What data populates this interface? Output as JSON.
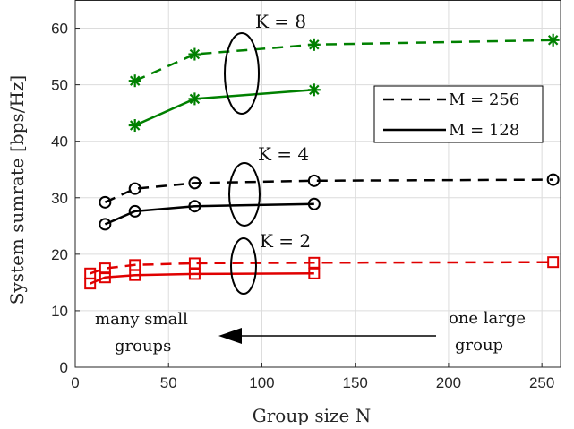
{
  "chart_data": {
    "type": "line",
    "xlabel": "Group size N",
    "ylabel": "System sumrate [bps/Hz]",
    "xlim": [
      0,
      260
    ],
    "ylim": [
      0,
      65
    ],
    "xticks": [
      0,
      50,
      100,
      150,
      200,
      250
    ],
    "yticks": [
      0,
      10,
      20,
      30,
      40,
      50,
      60
    ],
    "grid": true,
    "legend": {
      "placement": "right",
      "entries": [
        {
          "label": "M = 256",
          "style": "dashed"
        },
        {
          "label": "M = 128",
          "style": "solid"
        }
      ]
    },
    "series": [
      {
        "name": "K = 8, M = 256",
        "color": "#008000",
        "dash": "dashed",
        "marker": "asterisk",
        "x": [
          32,
          64,
          128,
          256
        ],
        "y": [
          50.7,
          55.4,
          57.1,
          57.9
        ]
      },
      {
        "name": "K = 8, M = 128",
        "color": "#008000",
        "dash": "solid",
        "marker": "asterisk",
        "x": [
          32,
          64,
          128
        ],
        "y": [
          42.8,
          47.5,
          49.1
        ]
      },
      {
        "name": "K = 4, M = 256",
        "color": "#000000",
        "dash": "dashed",
        "marker": "circle",
        "x": [
          16,
          32,
          64,
          128,
          256
        ],
        "y": [
          29.2,
          31.6,
          32.6,
          33.0,
          33.2
        ]
      },
      {
        "name": "K = 4, M = 128",
        "color": "#000000",
        "dash": "solid",
        "marker": "circle",
        "x": [
          16,
          32,
          64,
          128
        ],
        "y": [
          25.3,
          27.6,
          28.5,
          28.9
        ]
      },
      {
        "name": "K = 2, M = 256",
        "color": "#e00000",
        "dash": "dashed",
        "marker": "square",
        "x": [
          8,
          16,
          32,
          64,
          128,
          256
        ],
        "y": [
          16.6,
          17.5,
          18.1,
          18.4,
          18.5,
          18.6
        ]
      },
      {
        "name": "K = 2, M = 128",
        "color": "#e00000",
        "dash": "solid",
        "marker": "square",
        "x": [
          8,
          16,
          32,
          64,
          128
        ],
        "y": [
          14.8,
          15.9,
          16.3,
          16.5,
          16.6
        ]
      }
    ],
    "annotations": {
      "k8": "K = 8",
      "k4": "K = 4",
      "k2": "K = 2",
      "many_line1": "many small",
      "many_line2": "groups",
      "one_line1": "one large",
      "one_line2": "group"
    }
  }
}
